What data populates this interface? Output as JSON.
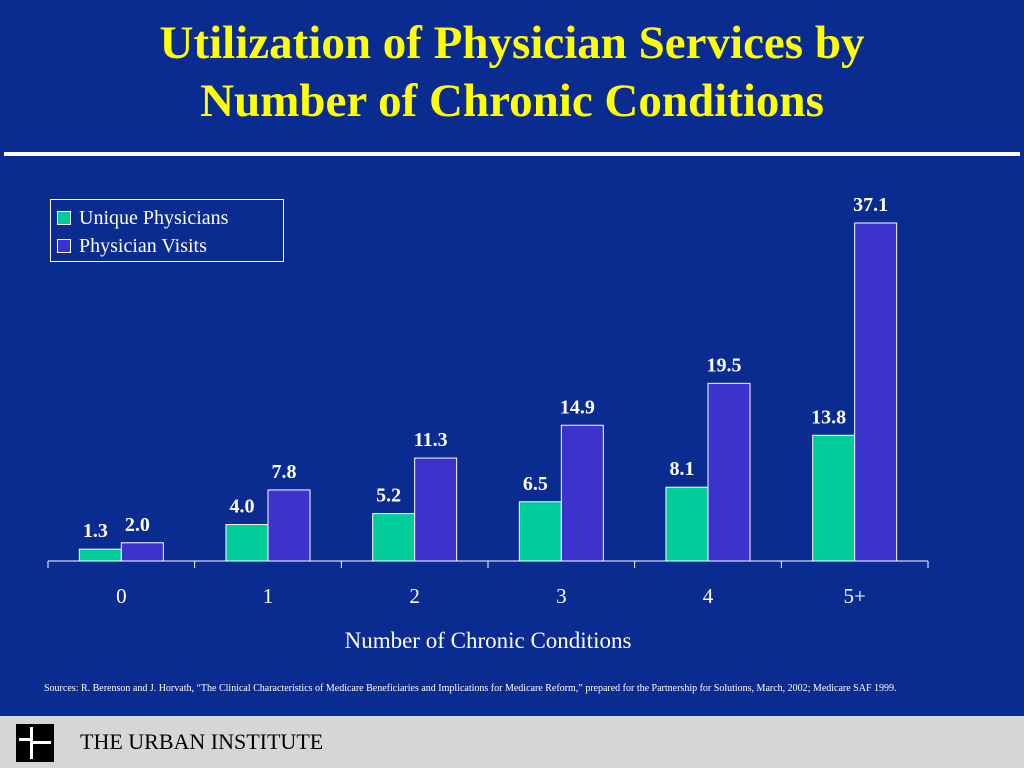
{
  "slide": {
    "title_line1": "Utilization of Physician Services by",
    "title_line2": "Number of Chronic Conditions",
    "sources": "Sources:  R. Berenson and J. Horvath, “The Clinical Characteristics of Medicare Beneficiaries and Implications for Medicare Reform,” prepared for the Partnership for Solutions, March, 2002; Medicare SAF 1999.",
    "footer": "THE URBAN INSTITUTE"
  },
  "colors": {
    "background": "#0a2b8f",
    "title": "#ffff00",
    "unique_physicians": "#00cc99",
    "physician_visits": "#3b33cc"
  },
  "chart_data": {
    "type": "bar",
    "title": "",
    "xlabel": "Number of Chronic Conditions",
    "ylabel": "",
    "categories": [
      "0",
      "1",
      "2",
      "3",
      "4",
      "5+"
    ],
    "series": [
      {
        "name": "Unique Physicians",
        "values": [
          1.3,
          4.0,
          5.2,
          6.5,
          8.1,
          13.8
        ],
        "labels": [
          "1.3",
          "4.0",
          "5.2",
          "6.5",
          "8.1",
          "13.8"
        ]
      },
      {
        "name": "Physician Visits",
        "values": [
          2.0,
          7.8,
          11.3,
          14.9,
          19.5,
          37.1
        ],
        "labels": [
          "2.0",
          "7.8",
          "11.3",
          "14.9",
          "19.5",
          "37.1"
        ]
      }
    ],
    "ylim": [
      0,
      37.1
    ],
    "grid": false,
    "legend": "top-left"
  }
}
